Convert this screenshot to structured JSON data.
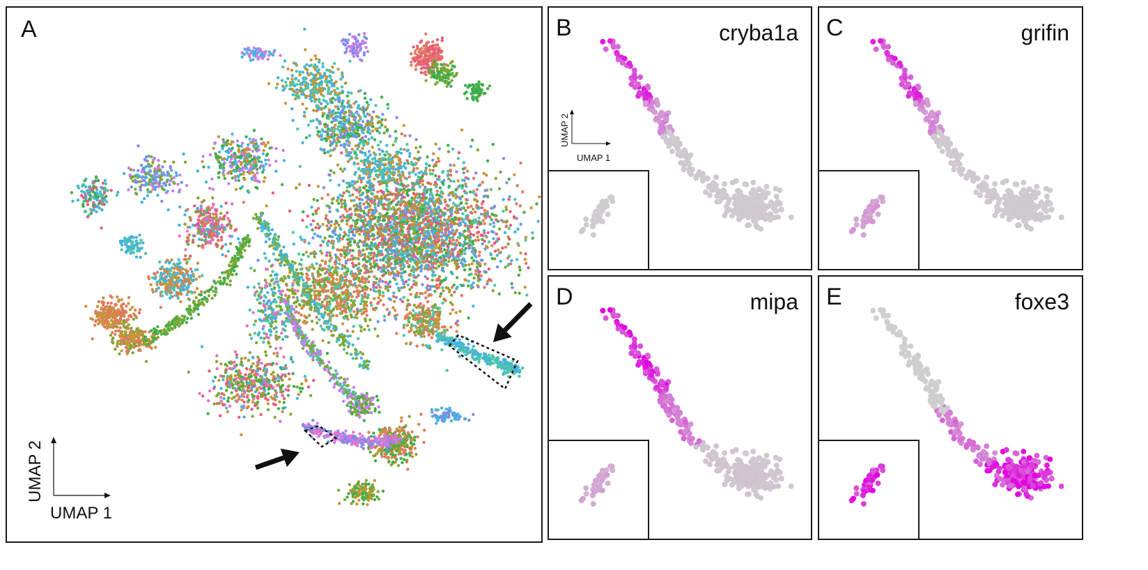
{
  "colors": {
    "expressed": "#e000e0",
    "not_expressed": "#cfcfcf",
    "cluster_palette": [
      "#e07a5f",
      "#c8943a",
      "#7fa832",
      "#3fae49",
      "#4fc4a6",
      "#45b3e0",
      "#7b8de8",
      "#c77ee8",
      "#e86fbf",
      "#e85a7a"
    ]
  },
  "chart_data": [
    {
      "panel": "A",
      "type": "scatter",
      "title": "",
      "xlabel": "UMAP 1",
      "ylabel": "UMAP 2",
      "annotations": [
        "arrow to boxed lens cluster (right)",
        "arrow to boxed lens cluster (bottom)"
      ]
    },
    {
      "panel": "B",
      "type": "scatter",
      "title": "cryba1a",
      "xlabel": "UMAP 1",
      "ylabel": "UMAP 2",
      "expression_profile": "anterior-high"
    },
    {
      "panel": "C",
      "type": "scatter",
      "title": "grifin",
      "xlabel": "",
      "ylabel": "",
      "expression_profile": "anterior-high"
    },
    {
      "panel": "D",
      "type": "scatter",
      "title": "mipa",
      "xlabel": "",
      "ylabel": "",
      "expression_profile": "broad-upper"
    },
    {
      "panel": "E",
      "type": "scatter",
      "title": "foxe3",
      "xlabel": "",
      "ylabel": "",
      "expression_profile": "posterior-high"
    }
  ],
  "labels": {
    "A": "A",
    "B": "B",
    "C": "C",
    "D": "D",
    "E": "E",
    "umap1": "UMAP 1",
    "umap2": "UMAP 2"
  }
}
